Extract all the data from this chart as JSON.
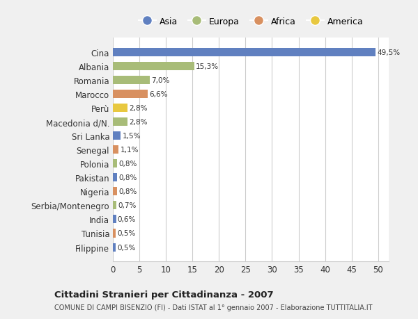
{
  "countries": [
    "Filippine",
    "Tunisia",
    "India",
    "Serbia/Montenegro",
    "Nigeria",
    "Pakistan",
    "Polonia",
    "Senegal",
    "Sri Lanka",
    "Macedonia d/N.",
    "Perù",
    "Marocco",
    "Romania",
    "Albania",
    "Cina"
  ],
  "values": [
    0.5,
    0.5,
    0.6,
    0.7,
    0.8,
    0.8,
    0.8,
    1.1,
    1.5,
    2.8,
    2.8,
    6.6,
    7.0,
    15.3,
    49.5
  ],
  "continents": [
    "Asia",
    "Africa",
    "Asia",
    "Europa",
    "Africa",
    "Asia",
    "Europa",
    "Africa",
    "Asia",
    "Europa",
    "America",
    "Africa",
    "Europa",
    "Europa",
    "Asia"
  ],
  "colors": {
    "Asia": "#6080c0",
    "Europa": "#a8bc78",
    "Africa": "#d89060",
    "America": "#e8c840"
  },
  "legend_order": [
    "Asia",
    "Europa",
    "Africa",
    "America"
  ],
  "label_texts": [
    "0,5%",
    "0,5%",
    "0,6%",
    "0,7%",
    "0,8%",
    "0,8%",
    "0,8%",
    "1,1%",
    "1,5%",
    "2,8%",
    "2,8%",
    "6,6%",
    "7,0%",
    "15,3%",
    "49,5%"
  ],
  "xlabel_ticks": [
    0,
    5,
    10,
    15,
    20,
    25,
    30,
    35,
    40,
    45,
    50
  ],
  "xlim": [
    0,
    52
  ],
  "title": "Cittadini Stranieri per Cittadinanza - 2007",
  "subtitle": "COMUNE DI CAMPI BISENZIO (FI) - Dati ISTAT al 1° gennaio 2007 - Elaborazione TUTTITALIA.IT",
  "bg_color": "#f0f0f0",
  "plot_bg_color": "#ffffff",
  "grid_color": "#cccccc",
  "bar_height": 0.6
}
